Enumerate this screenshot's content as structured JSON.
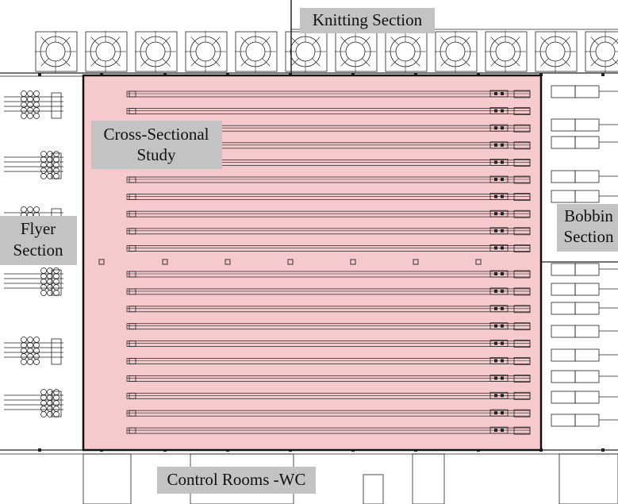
{
  "regions": {
    "knitting": {
      "lines": [
        "Knitting Section"
      ]
    },
    "cross_sectional": {
      "lines": [
        "Cross-Sectional",
        "Study"
      ]
    },
    "flyer": {
      "lines": [
        "Flyer",
        "Section"
      ]
    },
    "bobbin": {
      "lines": [
        "Bobbin",
        "Section"
      ]
    },
    "control": {
      "lines": [
        "Control Rooms -WC"
      ]
    }
  }
}
